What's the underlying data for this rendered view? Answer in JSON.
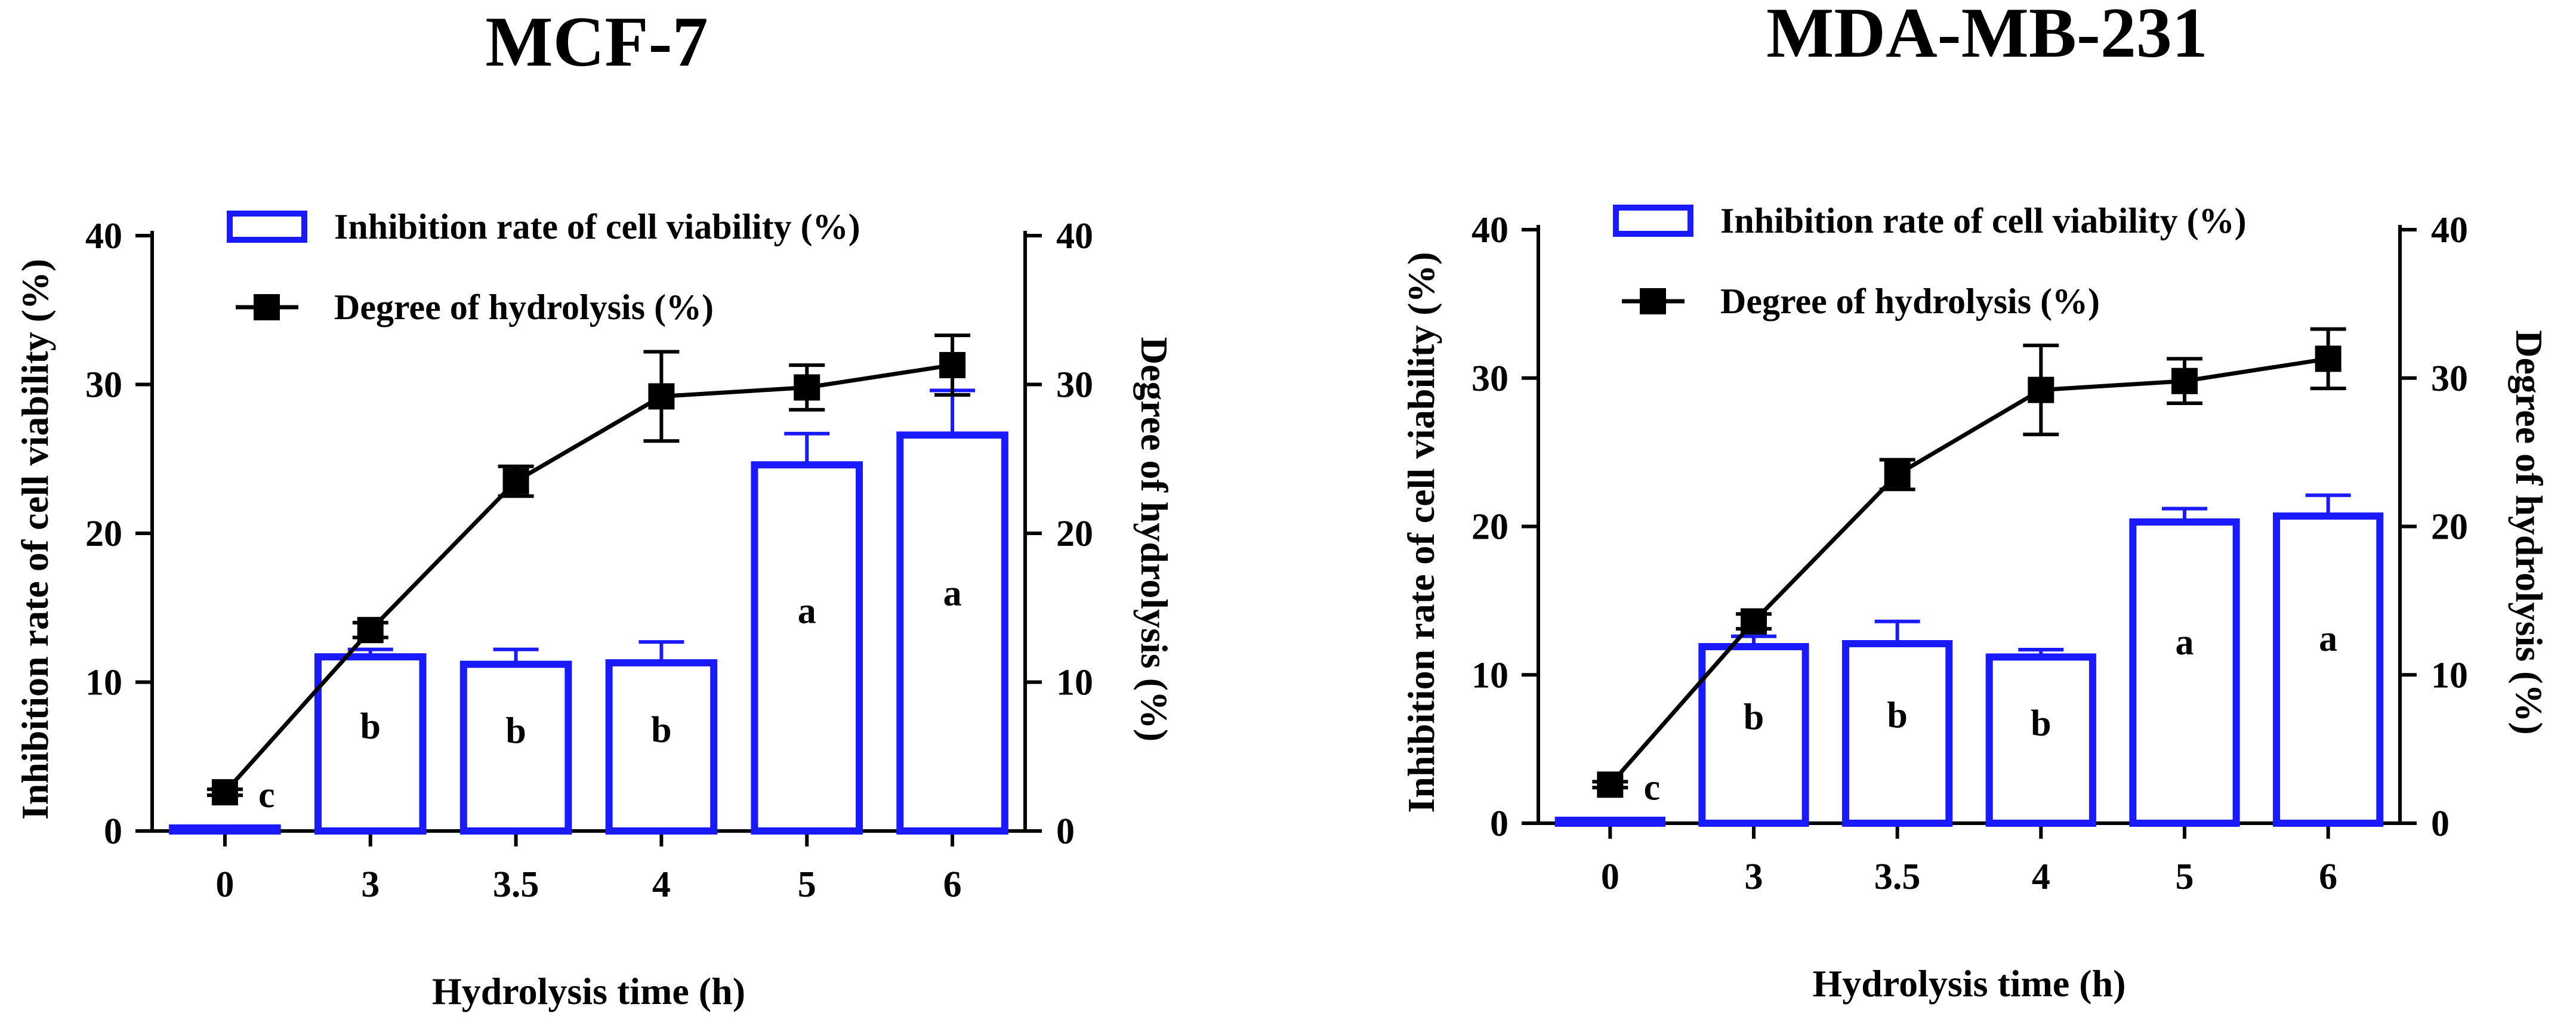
{
  "chart_data": [
    {
      "type": "bar+line",
      "title": "MCF-7",
      "xlabel": "Hydrolysis time (h)",
      "ylabel_left": "Inhibition rate of cell viability (%)",
      "ylabel_right": "Degree of hydrolysis (%)",
      "ylim_left": [
        0,
        40
      ],
      "ylim_right": [
        0,
        40
      ],
      "yticks": [
        "0",
        "10",
        "20",
        "30",
        "40"
      ],
      "categories": [
        "0",
        "3",
        "3.5",
        "4",
        "5",
        "6"
      ],
      "legend": {
        "bar": "Inhibition rate of cell viability (%)",
        "line": "Degree of hydrolysis (%)",
        "placement": "top"
      },
      "colors": {
        "bar": "#1a1aff",
        "line": "#000000"
      },
      "bars": {
        "name": "Inhibition rate of cell viability (%)",
        "values": [
          0.2,
          11.7,
          11.2,
          11.3,
          24.6,
          26.6
        ],
        "errors": [
          0,
          0.5,
          1.0,
          1.4,
          2.1,
          3.0
        ],
        "labels": [
          "c",
          "b",
          "b",
          "b",
          "a",
          "a"
        ]
      },
      "line": {
        "name": "Degree of hydrolysis (%)",
        "values": [
          2.6,
          13.5,
          23.5,
          29.2,
          29.8,
          31.3
        ],
        "errors": [
          0.2,
          0.5,
          1.0,
          3.0,
          1.5,
          2.0
        ]
      }
    },
    {
      "type": "bar+line",
      "title": "MDA-MB-231",
      "xlabel": "Hydrolysis time (h)",
      "ylabel_left": "Inhibition rate of cell viability (%)",
      "ylabel_right": "Degree of hydrolysis (%)",
      "ylim_left": [
        0,
        40
      ],
      "ylim_right": [
        0,
        40
      ],
      "yticks": [
        "0",
        "10",
        "20",
        "30",
        "40"
      ],
      "categories": [
        "0",
        "3",
        "3.5",
        "4",
        "5",
        "6"
      ],
      "legend": {
        "bar": "Inhibition rate of cell viability (%)",
        "line": "Degree of hydrolysis (%)",
        "placement": "top"
      },
      "colors": {
        "bar": "#1a1aff",
        "line": "#000000"
      },
      "bars": {
        "name": "Inhibition rate of cell viability (%)",
        "values": [
          0.2,
          11.9,
          12.1,
          11.2,
          20.3,
          20.7
        ],
        "errors": [
          0,
          0.7,
          1.5,
          0.5,
          0.9,
          1.4
        ],
        "labels": [
          "c",
          "b",
          "b",
          "b",
          "a",
          "a"
        ]
      },
      "line": {
        "name": "Degree of hydrolysis (%)",
        "values": [
          2.6,
          13.6,
          23.5,
          29.2,
          29.8,
          31.3
        ],
        "errors": [
          0.2,
          0.5,
          1.0,
          3.0,
          1.5,
          2.0
        ]
      }
    }
  ]
}
